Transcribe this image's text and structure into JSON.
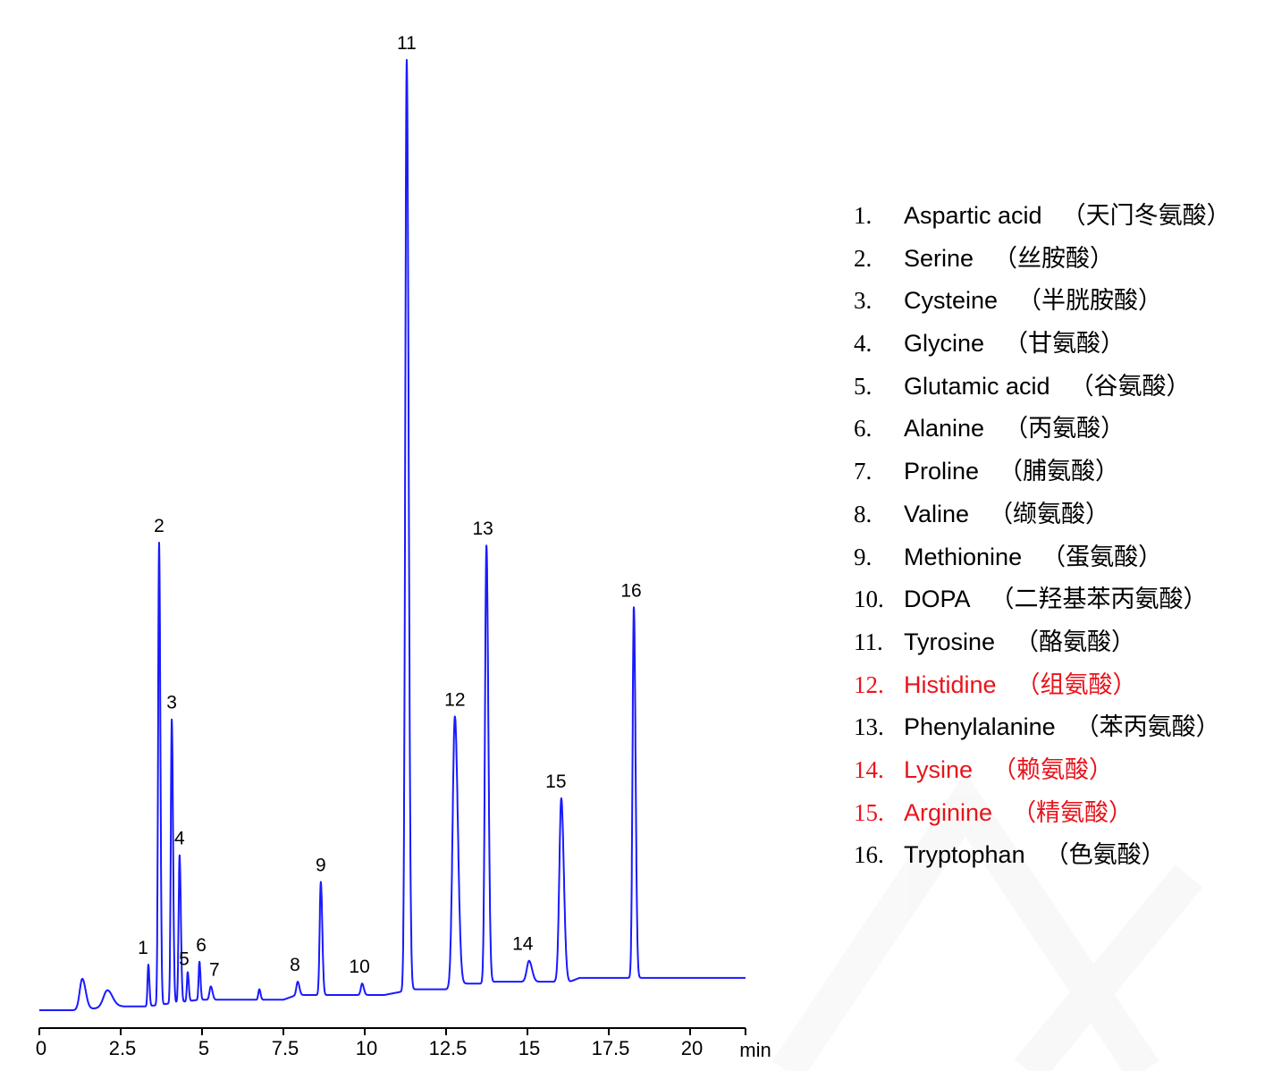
{
  "chart_data": {
    "type": "line",
    "title": "",
    "xlabel": "min",
    "ylabel": "",
    "xlim": [
      0,
      21.7
    ],
    "ylim": [
      0,
      100
    ],
    "x_ticks": [
      "0",
      "2.5",
      "5",
      "7.5",
      "10",
      "12.5",
      "15",
      "17.5",
      "20"
    ],
    "x_tick_values": [
      0,
      2.5,
      5,
      7.5,
      10,
      12.5,
      15,
      17.5,
      20
    ],
    "grid": false,
    "line_color": "#1a1aff",
    "baseline": [
      [
        0,
        0
      ],
      [
        1.1,
        0
      ],
      [
        2.4,
        0.4
      ],
      [
        3.3,
        0.4
      ],
      [
        4.9,
        1.1
      ],
      [
        7.5,
        1.1
      ],
      [
        7.9,
        1.6
      ],
      [
        10.6,
        1.6
      ],
      [
        11.5,
        2.2
      ],
      [
        12.6,
        2.2
      ],
      [
        13.1,
        2.8
      ],
      [
        13.6,
        2.8
      ],
      [
        14.0,
        3.0
      ],
      [
        16.3,
        3.0
      ],
      [
        16.6,
        3.4
      ],
      [
        21.7,
        3.4
      ]
    ],
    "peaks": [
      {
        "label": "",
        "rt": 1.32,
        "height": 3.3,
        "width": 0.08
      },
      {
        "label": "",
        "rt": 2.09,
        "height": 2.1,
        "width": 0.12
      },
      {
        "label": "1",
        "rt": 3.35,
        "height": 4.8,
        "width": 0.025
      },
      {
        "label": "2",
        "rt": 3.68,
        "height": 49.2,
        "width": 0.03
      },
      {
        "label": "3",
        "rt": 4.07,
        "height": 30.6,
        "width": 0.03
      },
      {
        "label": "4",
        "rt": 4.31,
        "height": 16.3,
        "width": 0.03
      },
      {
        "label": "5",
        "rt": 4.56,
        "height": 4.0,
        "width": 0.025
      },
      {
        "label": "6",
        "rt": 4.92,
        "height": 5.1,
        "width": 0.025
      },
      {
        "label": "7",
        "rt": 5.27,
        "height": 2.5,
        "width": 0.04
      },
      {
        "label": "",
        "rt": 6.76,
        "height": 2.2,
        "width": 0.03
      },
      {
        "label": "8",
        "rt": 7.94,
        "height": 3.0,
        "width": 0.04
      },
      {
        "label": "9",
        "rt": 8.65,
        "height": 13.5,
        "width": 0.035
      },
      {
        "label": "10",
        "rt": 9.92,
        "height": 2.8,
        "width": 0.04
      },
      {
        "label": "11",
        "rt": 11.29,
        "height": 100,
        "width": 0.045
      },
      {
        "label": "12",
        "rt": 12.77,
        "height": 30.9,
        "width": 0.07
      },
      {
        "label": "13",
        "rt": 13.74,
        "height": 48.9,
        "width": 0.045
      },
      {
        "label": "14",
        "rt": 15.05,
        "height": 5.2,
        "width": 0.07
      },
      {
        "label": "15",
        "rt": 16.04,
        "height": 22.3,
        "width": 0.06
      },
      {
        "label": "16",
        "rt": 18.27,
        "height": 42.4,
        "width": 0.04
      }
    ]
  },
  "legend": [
    {
      "num": "1.",
      "name": "Aspartic acid",
      "cn": "（天门冬氨酸）",
      "highlight": false
    },
    {
      "num": "2.",
      "name": "Serine",
      "cn": "（丝胺酸）",
      "highlight": false
    },
    {
      "num": "3.",
      "name": "Cysteine",
      "cn": "（半胱胺酸）",
      "highlight": false
    },
    {
      "num": "4.",
      "name": "Glycine",
      "cn": "（甘氨酸）",
      "highlight": false
    },
    {
      "num": "5.",
      "name": "Glutamic acid",
      "cn": "（谷氨酸）",
      "highlight": false
    },
    {
      "num": "6.",
      "name": "Alanine",
      "cn": "（丙氨酸）",
      "highlight": false
    },
    {
      "num": "7.",
      "name": "Proline",
      "cn": "（脯氨酸）",
      "highlight": false
    },
    {
      "num": "8.",
      "name": "Valine",
      "cn": "（缬氨酸）",
      "highlight": false
    },
    {
      "num": "9.",
      "name": "Methionine",
      "cn": "（蛋氨酸）",
      "highlight": false
    },
    {
      "num": "10.",
      "name": "DOPA",
      "cn": "（二羟基苯丙氨酸）",
      "highlight": false
    },
    {
      "num": "11.",
      "name": "Tyrosine",
      "cn": "（酪氨酸）",
      "highlight": false
    },
    {
      "num": "12.",
      "name": "Histidine",
      "cn": "（组氨酸）",
      "highlight": true
    },
    {
      "num": "13.",
      "name": "Phenylalanine",
      "cn": "（苯丙氨酸）",
      "highlight": false
    },
    {
      "num": "14.",
      "name": "Lysine",
      "cn": "（赖氨酸）",
      "highlight": true
    },
    {
      "num": "15.",
      "name": "Arginine",
      "cn": "（精氨酸）",
      "highlight": true
    },
    {
      "num": "16.",
      "name": "Tryptophan",
      "cn": "（色氨酸）",
      "highlight": false
    }
  ],
  "colors": {
    "highlight": "#e8141b",
    "text": "#000000",
    "trace": "#1a1aff"
  }
}
